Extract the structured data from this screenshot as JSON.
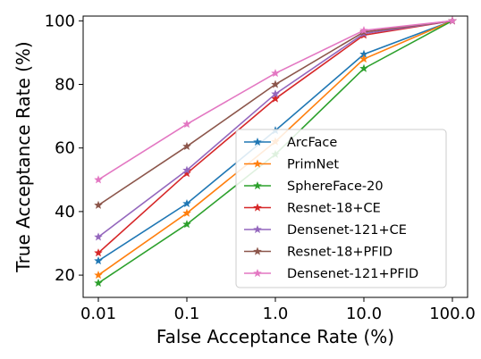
{
  "chart_data": {
    "type": "line",
    "xlabel": "False Acceptance Rate (%)",
    "ylabel": "True Acceptance Rate (%)",
    "x_scale": "log",
    "categories": [
      "0.01",
      "0.1",
      "1.0",
      "10.0",
      "100.0"
    ],
    "x": [
      0.01,
      0.1,
      1.0,
      10.0,
      100.0
    ],
    "ylim": [
      13,
      101.5
    ],
    "yticks": [
      20,
      40,
      60,
      80,
      100
    ],
    "grid": false,
    "legend_position": "lower-right",
    "series": [
      {
        "name": "ArcFace",
        "color": "#1f77b4",
        "values": [
          24.5,
          42.5,
          65.5,
          89.5,
          100
        ]
      },
      {
        "name": "PrimNet",
        "color": "#ff7f0e",
        "values": [
          20.0,
          39.5,
          62.0,
          88.0,
          100
        ]
      },
      {
        "name": "SphereFace-20",
        "color": "#2ca02c",
        "values": [
          17.5,
          36.0,
          58.0,
          85.0,
          100
        ]
      },
      {
        "name": "Resnet-18+CE",
        "color": "#d62728",
        "values": [
          27.0,
          52.0,
          75.5,
          95.5,
          100
        ]
      },
      {
        "name": "Densenet-121+CE",
        "color": "#9467bd",
        "values": [
          32.0,
          53.0,
          77.0,
          96.0,
          100
        ]
      },
      {
        "name": "Resnet-18+PFID",
        "color": "#8c564b",
        "values": [
          42.0,
          60.5,
          80.0,
          96.5,
          100
        ]
      },
      {
        "name": "Densenet-121+PFID",
        "color": "#e377c2",
        "values": [
          50.0,
          67.5,
          83.5,
          97.0,
          100
        ]
      }
    ]
  }
}
